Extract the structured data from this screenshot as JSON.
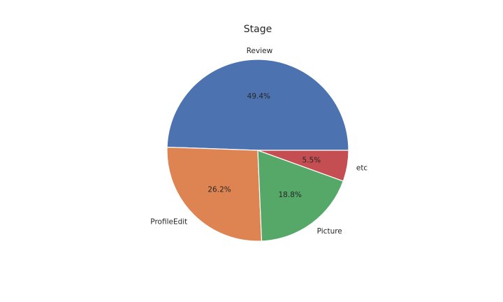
{
  "chart_data": {
    "type": "pie",
    "title": "Stage",
    "labels": [
      "Review",
      "ProfileEdit",
      "Picture",
      "etc"
    ],
    "values": [
      49.4,
      26.2,
      18.8,
      5.5
    ],
    "percent_labels": [
      "49.4%",
      "26.2%",
      "18.8%",
      "5.5%"
    ],
    "colors": [
      "#4c72b0",
      "#dd8452",
      "#55a868",
      "#c44e52"
    ],
    "start_angle_deg": 0,
    "direction": "counterclockwise",
    "legend": "none"
  }
}
